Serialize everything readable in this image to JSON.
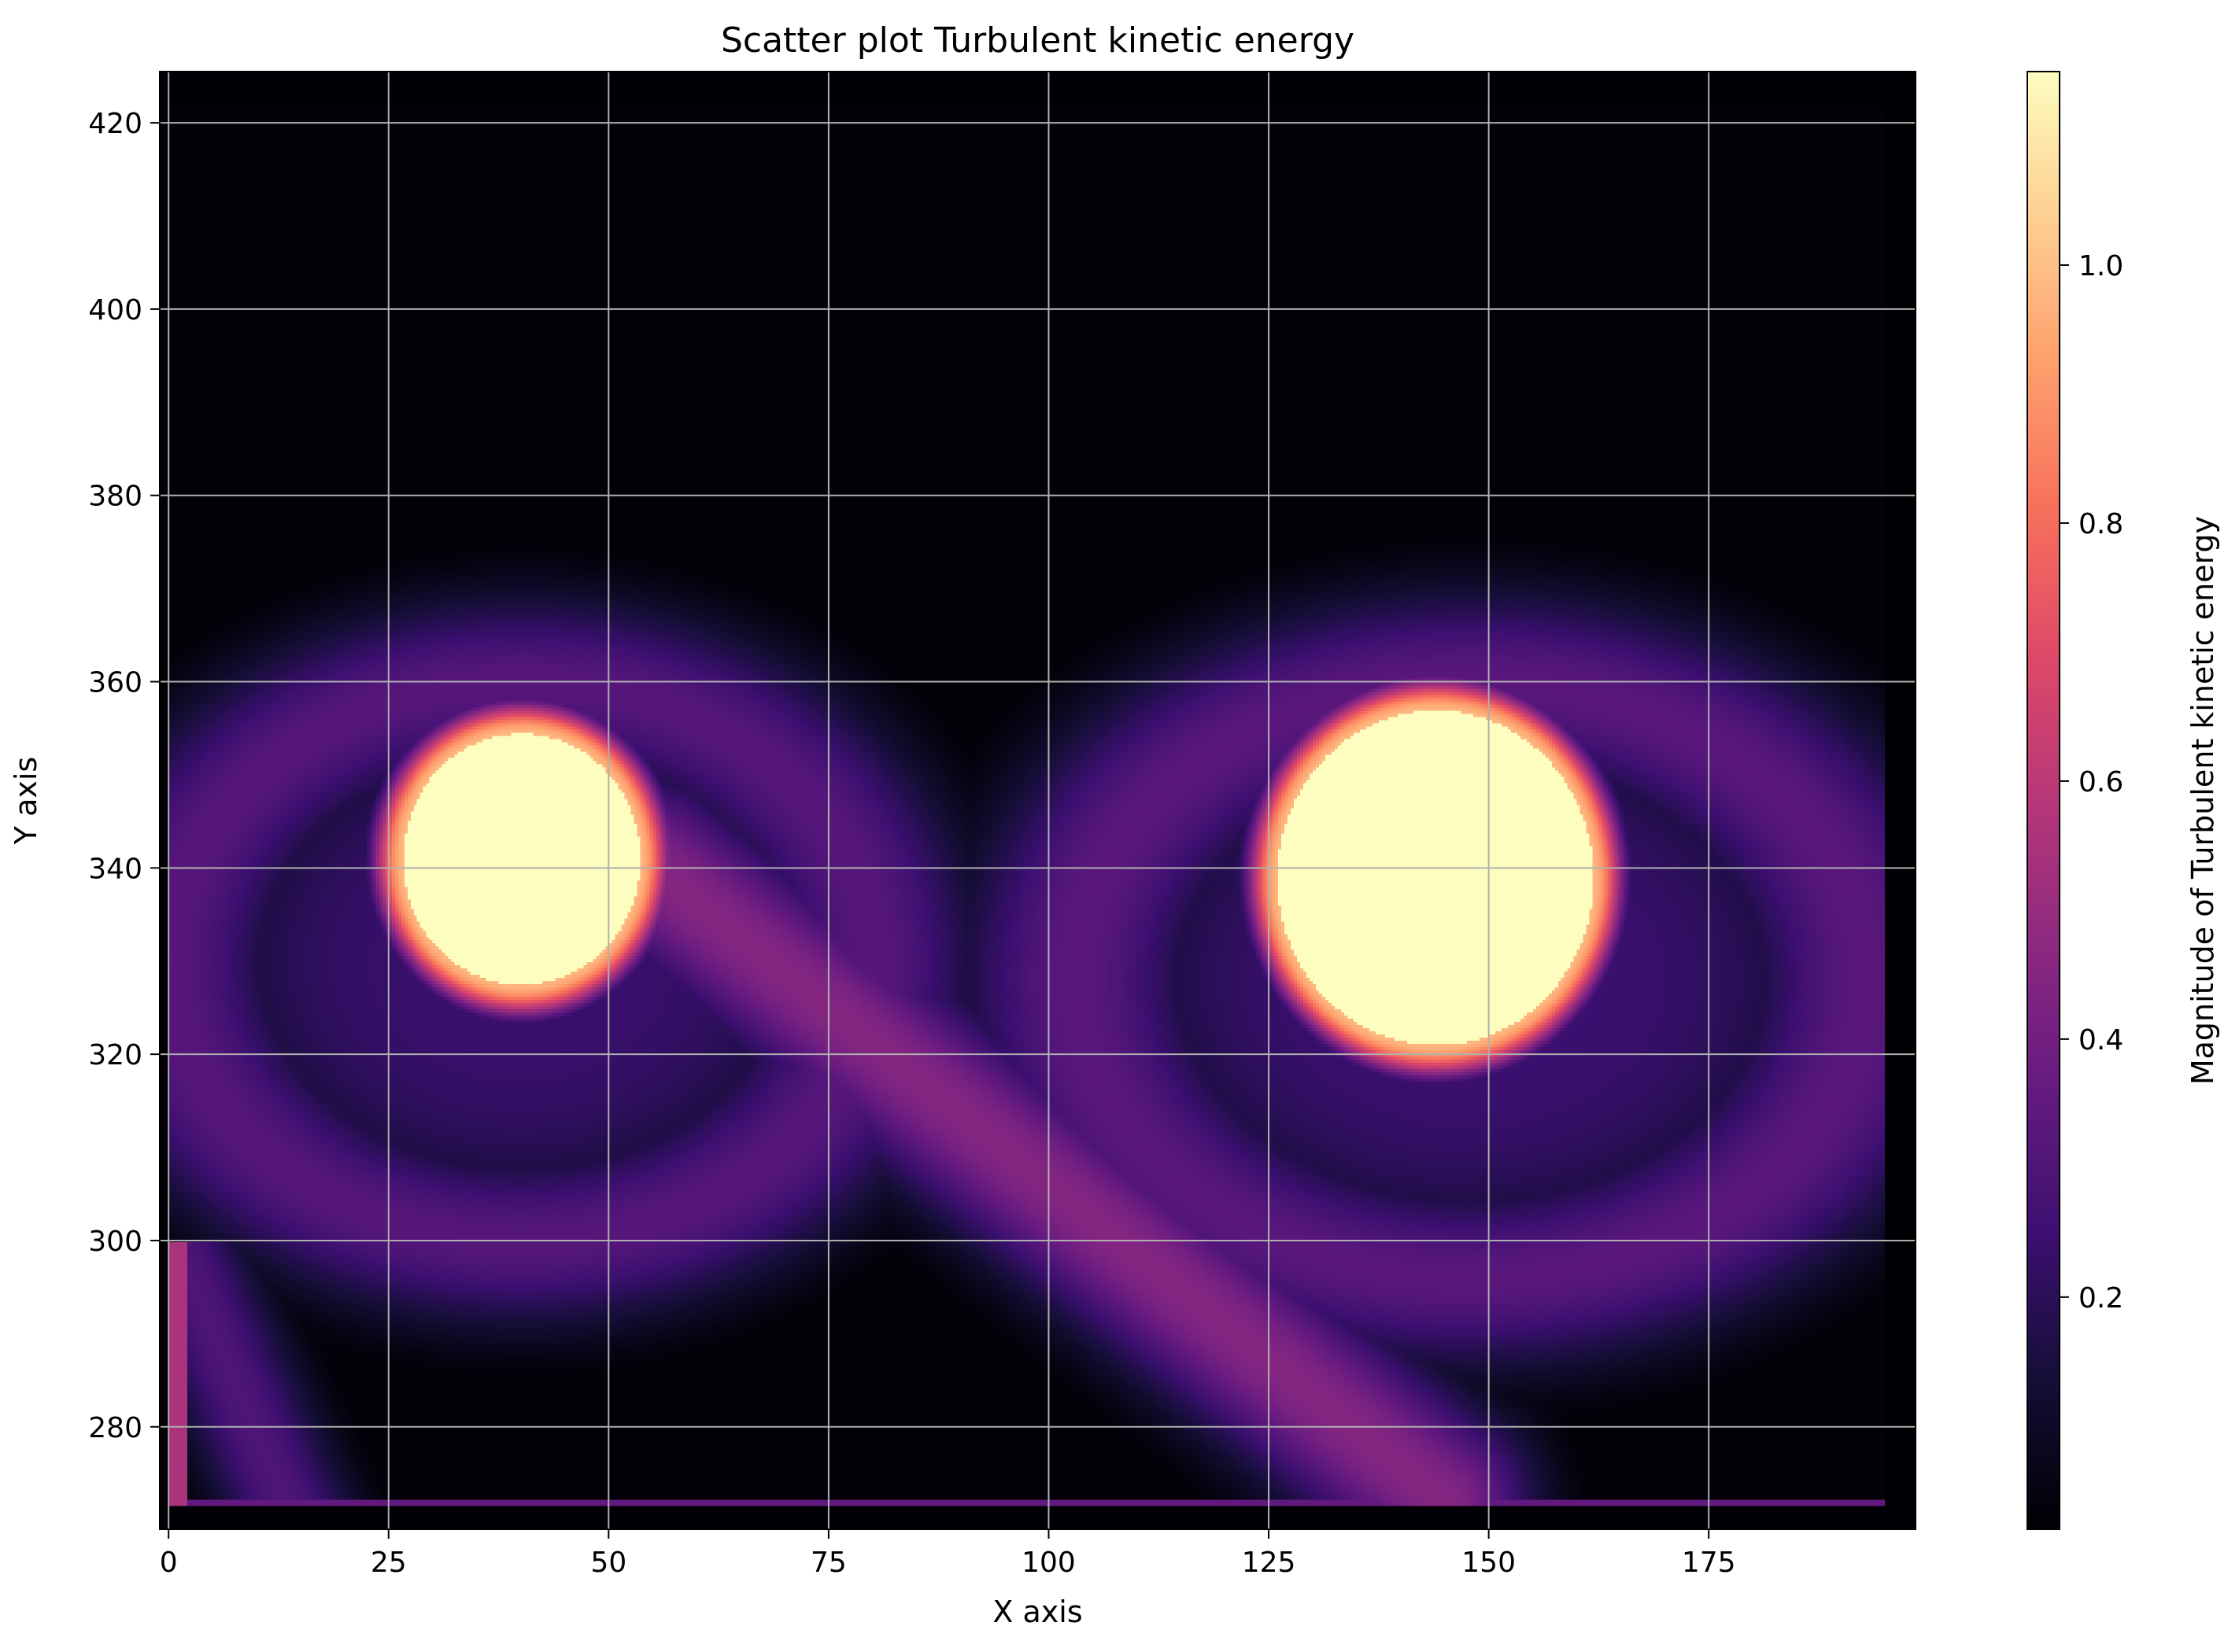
{
  "chart_data": {
    "type": "heatmap",
    "title": "Scatter plot Turbulent kinetic energy",
    "xlabel": "X axis",
    "ylabel": "Y axis",
    "xlim": [
      -1,
      198.5
    ],
    "ylim": [
      269,
      425.5
    ],
    "xticks": [
      0,
      25,
      50,
      75,
      100,
      125,
      150,
      175
    ],
    "yticks": [
      280,
      300,
      320,
      340,
      360,
      380,
      400,
      420
    ],
    "grid": true,
    "colormap": "magma",
    "colorbar": {
      "label": "Magnitude of Turbulent kinetic energy",
      "range": [
        0.02,
        1.15
      ],
      "ticks": [
        0.2,
        0.4,
        0.6,
        0.8,
        1.0
      ],
      "tick_labels": [
        "0.2",
        "0.4",
        "0.6",
        "0.8",
        "1.0"
      ],
      "placement": "right"
    },
    "grid_domain": {
      "x": [
        0,
        195
      ],
      "y": [
        271.5,
        422
      ]
    },
    "hot_spots": [
      {
        "cx": 40,
        "cy": 341,
        "r": 13.5,
        "peak": 1.15
      },
      {
        "cx": 144,
        "cy": 339,
        "r": 18,
        "peak": 1.15
      }
    ],
    "halo_arcs": [
      {
        "cx": 40,
        "cy": 330,
        "rx": 40,
        "ry": 30,
        "level": 0.32
      },
      {
        "cx": 148,
        "cy": 328,
        "rx": 45,
        "ry": 32,
        "level": 0.33
      }
    ],
    "wake_band": {
      "from": [
        55,
        340
      ],
      "to": [
        145,
        272
      ],
      "width": 10,
      "level": 0.45
    },
    "bottom_edge_y": 271.5,
    "left_edge_x": 0.5
  }
}
